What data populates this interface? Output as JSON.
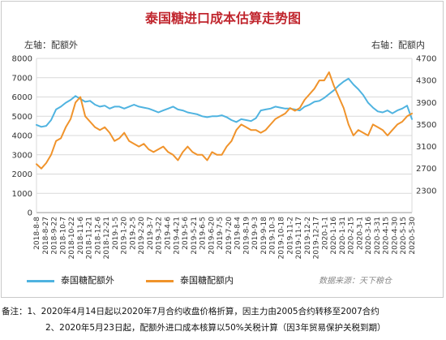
{
  "chart_data": {
    "type": "line",
    "title": "泰国糖进口成本估算走势图",
    "left_axis_label": "左轴：配额外",
    "right_axis_label": "右轴：配额内",
    "yleft_ticks": [
      "0",
      "1000",
      "2000",
      "3000",
      "4000",
      "5000",
      "6000",
      "7000",
      "8000"
    ],
    "yleft_lim": [
      0,
      8000
    ],
    "yright_ticks": [
      "1900",
      "2300",
      "2700",
      "3100",
      "3500",
      "3900",
      "4300",
      "4700"
    ],
    "yright_tick_labels": [
      "2300",
      "2700",
      "3100",
      "3500",
      "3900",
      "4300",
      "4700"
    ],
    "yright_lim": [
      1900,
      4700
    ],
    "x_tick_labels": [
      "2018-8-8",
      "2018-8-27",
      "2018-9-22",
      "2018-10-7",
      "2018-10-22",
      "2018-11-6",
      "2018-11-21",
      "2018-12-6",
      "2018-12-21",
      "2019-1-5",
      "2019-1-20",
      "2019-2-5",
      "2019-2-20",
      "2019-3-7",
      "2019-3-22",
      "2019-4-6",
      "2019-4-21",
      "2019-5-6",
      "2019-5-21",
      "2019-6-5",
      "2019-6-20",
      "2019-7-5",
      "2019-7-20",
      "2019-8-4",
      "2019-8-19",
      "2019-9-3",
      "2019-9-18",
      "2019-10-3",
      "2019-10-18",
      "2019-11-2",
      "2019-11-17",
      "2019-12-2",
      "2019-12-17",
      "2020-1-1",
      "2020-1-16",
      "2020-1-31",
      "2020-2-15",
      "2020-3-1",
      "2020-3-16",
      "2020-3-31",
      "2020-4-15",
      "2020-4-30",
      "2020-5-15",
      "2020-5-30"
    ],
    "grid": true,
    "legend_position": "bottom",
    "series": [
      {
        "name": "泰国糖配额外",
        "axis": "left",
        "color": "#4fb3e0",
        "values": [
          4550,
          4450,
          4500,
          4800,
          5350,
          5500,
          5700,
          5850,
          6050,
          5900,
          5750,
          5800,
          5600,
          5500,
          5550,
          5400,
          5500,
          5500,
          5400,
          5500,
          5600,
          5500,
          5450,
          5400,
          5300,
          5200,
          5300,
          5400,
          5500,
          5350,
          5300,
          5200,
          5150,
          5100,
          5000,
          4950,
          5000,
          5000,
          5050,
          4950,
          4800,
          4700,
          4850,
          4800,
          4750,
          4900,
          5300,
          5350,
          5400,
          5500,
          5450,
          5400,
          5400,
          5350,
          5300,
          5500,
          5600,
          5750,
          5800,
          5950,
          6150,
          6350,
          6600,
          6800,
          6950,
          6650,
          6400,
          6100,
          5700,
          5450,
          5250,
          5200,
          5300,
          5150,
          5300,
          5400,
          5550,
          4850
        ]
      },
      {
        "name": "泰国糖配额内",
        "axis": "right",
        "color": "#f0932b",
        "values": [
          2780,
          2700,
          2800,
          2950,
          3200,
          3250,
          3450,
          3600,
          3900,
          4000,
          3650,
          3550,
          3450,
          3400,
          3450,
          3350,
          3200,
          3250,
          3350,
          3200,
          3150,
          3100,
          3150,
          3050,
          3000,
          3050,
          3100,
          3000,
          2950,
          2850,
          3000,
          3100,
          3000,
          2950,
          2950,
          2850,
          3000,
          2950,
          2950,
          3100,
          3200,
          3400,
          3500,
          3450,
          3400,
          3400,
          3350,
          3400,
          3500,
          3600,
          3650,
          3700,
          3800,
          3750,
          3800,
          3950,
          4050,
          4150,
          4300,
          4300,
          4450,
          4200,
          4000,
          3800,
          3500,
          3300,
          3400,
          3350,
          3300,
          3500,
          3450,
          3400,
          3300,
          3400,
          3500,
          3550,
          3650,
          3700
        ]
      }
    ]
  },
  "legend": {
    "out_label": "泰国糖配额外",
    "in_label": "泰国糖配额内"
  },
  "source_label": "数据来源：天下粮仓",
  "notes": {
    "prefix": "备注：",
    "line1": "1、2020年4月14日起以2020年7月合约收盘价格折算，因主力由2005合约转移至2007合约",
    "line2": "2、2020年5月23日起，配额外进口成本核算以50%关税计算（因3年贸易保护关税到期）"
  }
}
